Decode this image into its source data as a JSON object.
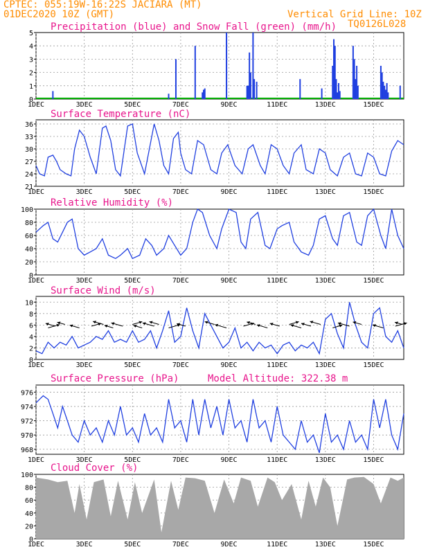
{
  "header": {
    "line1": "CPTEC:   055:19W-16:22S   JACIARA (MT)",
    "line2": "01DEC2020 10Z (GMT)",
    "grid_note": "Vertical Grid Line: 10Z",
    "code": "TQ0126L028"
  },
  "colors": {
    "header": "#ff8c00",
    "title": "#e8158c",
    "line": "#1f3fe0",
    "precip": "#1f3fe0",
    "snow": "#00b000",
    "cloud": "#a8a8a8",
    "arrow": "#000000"
  },
  "x_tick_labels": [
    "1DEC",
    "3DEC",
    "5DEC",
    "7DEC",
    "9DEC",
    "11DEC",
    "13DEC",
    "15DEC"
  ],
  "x_tick_days": [
    0,
    2,
    4,
    6,
    8,
    10,
    12,
    14
  ],
  "x_range_days": [
    0,
    15.25
  ],
  "chart_data": [
    {
      "type": "bar",
      "title": "Precipitation (blue) and Snow Fall (green) (mm/h)",
      "ylim": [
        0,
        5
      ],
      "yticks": [
        0,
        1,
        2,
        3,
        4,
        5
      ],
      "series": [
        {
          "name": "Precipitation",
          "color": "#1f3fe0",
          "points": [
            [
              0.7,
              0.6
            ],
            [
              5.5,
              0.4
            ],
            [
              5.8,
              3.0
            ],
            [
              6.6,
              4.0
            ],
            [
              6.9,
              0.5
            ],
            [
              6.95,
              0.7
            ],
            [
              7.0,
              0.8
            ],
            [
              7.9,
              5.0
            ],
            [
              8.75,
              1.0
            ],
            [
              8.8,
              1.0
            ],
            [
              8.85,
              3.5
            ],
            [
              8.9,
              2.0
            ],
            [
              9.0,
              5.0
            ],
            [
              9.05,
              1.5
            ],
            [
              9.15,
              1.3
            ],
            [
              10.95,
              1.5
            ],
            [
              11.85,
              0.8
            ],
            [
              12.3,
              2.5
            ],
            [
              12.35,
              4.5
            ],
            [
              12.4,
              4.0
            ],
            [
              12.45,
              1.5
            ],
            [
              12.5,
              0.5
            ],
            [
              12.55,
              1.2
            ],
            [
              12.6,
              0.6
            ],
            [
              13.15,
              4.0
            ],
            [
              13.2,
              3.0
            ],
            [
              13.25,
              1.5
            ],
            [
              13.3,
              2.5
            ],
            [
              13.35,
              1.0
            ],
            [
              14.3,
              2.5
            ],
            [
              14.35,
              2.0
            ],
            [
              14.4,
              1.3
            ],
            [
              14.45,
              1.0
            ],
            [
              14.5,
              0.7
            ],
            [
              14.55,
              1.2
            ],
            [
              14.6,
              0.5
            ],
            [
              15.1,
              1.0
            ]
          ]
        },
        {
          "name": "Snow Fall",
          "color": "#00b000",
          "points": []
        }
      ]
    },
    {
      "type": "line",
      "title": "Surface Temperature (nC)",
      "ylim": [
        21,
        37
      ],
      "yticks": [
        21,
        24,
        27,
        30,
        33,
        36
      ],
      "x": [
        0,
        0.15,
        0.35,
        0.5,
        0.7,
        0.85,
        1.0,
        1.25,
        1.45,
        1.6,
        1.8,
        2.0,
        2.25,
        2.5,
        2.75,
        2.9,
        3.1,
        3.3,
        3.5,
        3.8,
        4.0,
        4.2,
        4.5,
        4.7,
        4.9,
        5.1,
        5.3,
        5.5,
        5.7,
        5.9,
        6.0,
        6.2,
        6.45,
        6.7,
        6.95,
        7.25,
        7.5,
        7.7,
        7.95,
        8.25,
        8.55,
        8.8,
        9.0,
        9.3,
        9.5,
        9.75,
        10.0,
        10.25,
        10.5,
        10.7,
        11.0,
        11.2,
        11.5,
        11.75,
        12.0,
        12.2,
        12.5,
        12.75,
        13.0,
        13.25,
        13.5,
        13.75,
        14.0,
        14.25,
        14.5,
        14.75,
        15.0,
        15.25
      ],
      "y": [
        26,
        24,
        23.5,
        28,
        28.5,
        27,
        25,
        24,
        23.5,
        30,
        34.5,
        33,
        28,
        24,
        35,
        35.5,
        32,
        25,
        23.5,
        35.5,
        36,
        29,
        24,
        30,
        36,
        32,
        26,
        24,
        32.5,
        34,
        29,
        25,
        24,
        32,
        31,
        25,
        24,
        29,
        31,
        26,
        24,
        30,
        31,
        26,
        24,
        31,
        30,
        26,
        24,
        29,
        31,
        25,
        24,
        30,
        29,
        25,
        23.5,
        28,
        29,
        24,
        23.5,
        29,
        28,
        24,
        23.5,
        29.5,
        32,
        31
      ]
    },
    {
      "type": "line",
      "title": "Relative Humidity (%)",
      "ylim": [
        0,
        100
      ],
      "yticks": [
        0,
        20,
        40,
        60,
        80,
        100
      ],
      "x": [
        0,
        0.3,
        0.5,
        0.7,
        0.9,
        1.1,
        1.3,
        1.5,
        1.75,
        2.0,
        2.25,
        2.5,
        2.75,
        3.0,
        3.3,
        3.5,
        3.8,
        4.0,
        4.3,
        4.55,
        4.8,
        5.0,
        5.3,
        5.5,
        5.75,
        6.0,
        6.25,
        6.5,
        6.7,
        6.9,
        7.2,
        7.5,
        7.7,
        8.0,
        8.3,
        8.5,
        8.7,
        8.9,
        9.2,
        9.5,
        9.7,
        10.0,
        10.2,
        10.5,
        10.7,
        11.0,
        11.3,
        11.5,
        11.75,
        12.0,
        12.3,
        12.5,
        12.75,
        13.0,
        13.3,
        13.5,
        13.75,
        14.0,
        14.3,
        14.5,
        14.75,
        15.0,
        15.25
      ],
      "y": [
        65,
        75,
        80,
        55,
        50,
        65,
        80,
        85,
        40,
        30,
        35,
        40,
        55,
        30,
        25,
        30,
        40,
        25,
        30,
        55,
        45,
        30,
        40,
        60,
        45,
        30,
        40,
        80,
        100,
        95,
        60,
        40,
        70,
        100,
        95,
        50,
        40,
        85,
        95,
        45,
        40,
        70,
        75,
        80,
        50,
        35,
        30,
        45,
        85,
        90,
        55,
        45,
        90,
        95,
        50,
        45,
        90,
        100,
        60,
        40,
        100,
        60,
        40
      ]
    },
    {
      "type": "line",
      "title": "Surface Wind (m/s)",
      "ylim": [
        0,
        11
      ],
      "yticks": [
        0,
        2,
        4,
        6,
        8,
        10
      ],
      "x": [
        0,
        0.25,
        0.5,
        0.75,
        1.0,
        1.25,
        1.5,
        1.75,
        2.0,
        2.25,
        2.5,
        2.75,
        3.0,
        3.25,
        3.5,
        3.75,
        4.0,
        4.25,
        4.5,
        4.75,
        5.0,
        5.25,
        5.5,
        5.75,
        6.0,
        6.25,
        6.5,
        6.75,
        7.0,
        7.25,
        7.5,
        7.75,
        8.0,
        8.25,
        8.5,
        8.75,
        9.0,
        9.25,
        9.5,
        9.75,
        10.0,
        10.25,
        10.5,
        10.75,
        11.0,
        11.25,
        11.5,
        11.75,
        12.0,
        12.25,
        12.5,
        12.75,
        13.0,
        13.25,
        13.5,
        13.75,
        14.0,
        14.25,
        14.5,
        14.75,
        15.0,
        15.25
      ],
      "y": [
        1.5,
        1,
        3,
        2,
        3,
        2.5,
        4,
        2,
        2.5,
        3,
        4,
        3.5,
        5,
        3,
        3.5,
        3,
        5,
        3,
        3.5,
        5,
        2,
        5,
        8.5,
        3,
        4,
        9,
        5,
        2,
        8,
        6,
        4,
        2,
        3,
        5.5,
        2,
        3,
        1.5,
        3,
        2,
        2.5,
        1,
        2.5,
        3,
        1.5,
        2.5,
        2,
        3,
        1,
        7,
        8,
        4.5,
        2,
        10,
        6,
        3,
        2,
        8,
        9,
        4,
        3,
        5,
        2
      ],
      "arrows": [
        [
          0.5,
          1.2
        ],
        [
          0.8,
          1.0
        ],
        [
          1.2,
          0.8
        ],
        [
          1.8,
          1.0
        ],
        [
          2.3,
          1.0
        ],
        [
          2.8,
          1.1
        ],
        [
          3.2,
          0.9
        ],
        [
          3.6,
          1.2
        ],
        [
          4.0,
          1.0
        ],
        [
          4.4,
          0.9
        ],
        [
          4.9,
          1.2
        ],
        [
          5.1,
          1.0
        ],
        [
          5.5,
          1.2
        ],
        [
          6.2,
          0.9
        ],
        [
          7.4,
          1.0
        ],
        [
          7.9,
          1.2
        ],
        [
          8.6,
          1.1
        ],
        [
          9.1,
          0.9
        ],
        [
          9.6,
          1.1
        ],
        [
          10.1,
          1.0
        ],
        [
          10.5,
          1.0
        ],
        [
          11.0,
          1.1
        ],
        [
          11.4,
          1.0
        ],
        [
          11.8,
          1.1
        ],
        [
          12.3,
          1.0
        ],
        [
          13.0,
          1.2
        ],
        [
          13.5,
          0.9
        ],
        [
          14.4,
          1.1
        ],
        [
          14.9,
          1.2
        ],
        [
          15.2,
          0.8
        ]
      ]
    },
    {
      "type": "line",
      "title": "Surface Pressure (hPa)",
      "annotation": "Model Altitude: 322.38 m",
      "ylim": [
        967.3,
        977
      ],
      "yticks": [
        968,
        970,
        972,
        974,
        976
      ],
      "x": [
        0,
        0.15,
        0.3,
        0.5,
        0.7,
        0.9,
        1.1,
        1.3,
        1.5,
        1.75,
        2.0,
        2.25,
        2.5,
        2.75,
        3.0,
        3.25,
        3.5,
        3.75,
        4.0,
        4.25,
        4.5,
        4.75,
        5.0,
        5.25,
        5.5,
        5.75,
        6.0,
        6.25,
        6.5,
        6.75,
        7.0,
        7.25,
        7.5,
        7.75,
        8.0,
        8.25,
        8.5,
        8.75,
        9.0,
        9.25,
        9.5,
        9.75,
        10.0,
        10.25,
        10.5,
        10.75,
        11.0,
        11.25,
        11.5,
        11.75,
        12.0,
        12.25,
        12.5,
        12.75,
        13.0,
        13.25,
        13.5,
        13.75,
        14.0,
        14.25,
        14.5,
        14.75,
        15.0,
        15.25
      ],
      "y": [
        974.5,
        975,
        975.5,
        975,
        973,
        971,
        974,
        972,
        970,
        969,
        972,
        970,
        971,
        969,
        972,
        970,
        974,
        970,
        971,
        969,
        973,
        970,
        971,
        969,
        975,
        971,
        972,
        969,
        975,
        970,
        975,
        971,
        974,
        970,
        975,
        971,
        972,
        969,
        975,
        971,
        972,
        969,
        974,
        970,
        969,
        968,
        972,
        969,
        970,
        967.5,
        973,
        969,
        970,
        968,
        972,
        969,
        970,
        968,
        975,
        971,
        975,
        970,
        968,
        973
      ]
    },
    {
      "type": "area",
      "title": "Cloud Cover (%)",
      "ylim": [
        0,
        100
      ],
      "yticks": [
        0,
        20,
        40,
        60,
        80,
        100
      ],
      "x": [
        0,
        0.5,
        0.9,
        1.3,
        1.6,
        1.8,
        2.1,
        2.4,
        2.8,
        3.1,
        3.4,
        3.8,
        4.1,
        4.4,
        4.9,
        5.2,
        5.6,
        5.9,
        6.2,
        6.6,
        7.0,
        7.4,
        7.8,
        8.2,
        8.5,
        8.9,
        9.2,
        9.6,
        9.9,
        10.2,
        10.6,
        11.0,
        11.3,
        11.6,
        11.9,
        12.2,
        12.5,
        12.9,
        13.2,
        13.6,
        14.0,
        14.3,
        14.7,
        15.0,
        15.25
      ],
      "y": [
        95,
        92,
        88,
        90,
        40,
        85,
        30,
        88,
        92,
        35,
        90,
        30,
        88,
        40,
        92,
        10,
        90,
        45,
        95,
        94,
        90,
        40,
        92,
        55,
        95,
        90,
        50,
        95,
        88,
        60,
        85,
        30,
        90,
        50,
        95,
        80,
        20,
        92,
        95,
        96,
        85,
        55,
        95,
        90,
        95
      ]
    }
  ]
}
